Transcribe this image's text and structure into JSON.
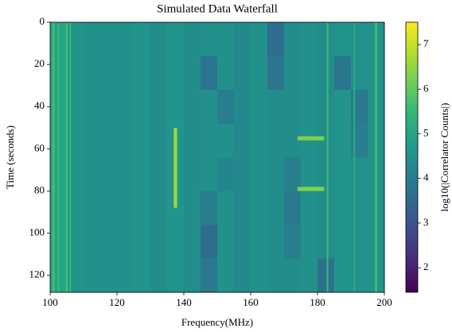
{
  "chart_data": {
    "type": "heatmap",
    "title": "Simulated Data Waterfall",
    "xlabel": "Frequency(MHz)",
    "ylabel": "Time (seconds)",
    "colorbar_label": "log10(|Correlator Counts|)",
    "colormap": "viridis",
    "xlim": [
      100,
      200
    ],
    "ylim": [
      128,
      0
    ],
    "xticks": [
      100,
      120,
      140,
      160,
      180,
      200
    ],
    "yticks": [
      0,
      20,
      40,
      60,
      80,
      100,
      120
    ],
    "clim": [
      1.45,
      7.5
    ],
    "cticks": [
      2,
      3,
      4,
      5,
      6,
      7
    ],
    "x_edges": [
      100,
      105,
      110,
      115,
      120,
      125,
      130,
      135,
      140,
      145,
      150,
      155,
      160,
      165,
      170,
      175,
      180,
      185,
      190,
      195,
      200
    ],
    "y_edges": [
      0,
      16,
      32,
      48,
      64,
      80,
      96,
      112,
      128
    ],
    "values": [
      [
        5.0,
        4.6,
        4.5,
        4.5,
        4.5,
        4.6,
        4.4,
        4.6,
        4.4,
        4.5,
        4.5,
        4.3,
        4.5,
        3.6,
        4.4,
        4.5,
        4.4,
        4.6,
        4.5,
        4.6
      ],
      [
        5.0,
        4.6,
        4.5,
        4.5,
        4.5,
        4.6,
        4.4,
        4.6,
        4.4,
        3.8,
        4.5,
        4.3,
        4.5,
        3.8,
        4.4,
        4.5,
        4.4,
        3.8,
        4.5,
        4.6
      ],
      [
        5.0,
        4.6,
        4.5,
        4.5,
        4.5,
        4.6,
        4.4,
        4.6,
        4.4,
        4.5,
        4.0,
        4.3,
        4.5,
        4.4,
        4.4,
        4.5,
        4.4,
        4.6,
        3.9,
        4.6
      ],
      [
        5.0,
        4.6,
        4.5,
        4.5,
        4.5,
        4.6,
        4.4,
        4.6,
        4.4,
        4.5,
        4.5,
        4.3,
        4.5,
        4.4,
        4.4,
        4.5,
        4.4,
        4.6,
        4.0,
        4.6
      ],
      [
        5.0,
        4.6,
        4.5,
        4.5,
        4.5,
        4.6,
        4.4,
        4.6,
        4.4,
        4.5,
        4.2,
        4.3,
        4.5,
        4.4,
        4.1,
        4.5,
        4.4,
        4.6,
        4.5,
        4.6
      ],
      [
        5.0,
        4.6,
        4.5,
        4.5,
        4.5,
        4.6,
        4.4,
        4.6,
        4.4,
        4.0,
        4.5,
        4.3,
        4.5,
        4.4,
        3.9,
        4.5,
        4.4,
        4.6,
        4.5,
        4.6
      ],
      [
        5.0,
        4.6,
        4.5,
        4.5,
        4.5,
        4.6,
        4.4,
        4.6,
        4.4,
        3.6,
        4.5,
        4.3,
        4.5,
        4.4,
        4.0,
        4.5,
        4.4,
        4.6,
        4.5,
        4.6
      ],
      [
        5.0,
        4.6,
        4.5,
        4.5,
        4.5,
        4.6,
        4.4,
        4.6,
        4.4,
        3.9,
        4.5,
        4.3,
        4.5,
        4.4,
        4.4,
        4.5,
        3.7,
        4.6,
        4.5,
        4.6
      ]
    ],
    "rfi_channels": [
      {
        "freq": 101,
        "value": 5.8
      },
      {
        "freq": 102.5,
        "value": 5.5
      },
      {
        "freq": 105,
        "value": 5.8
      },
      {
        "freq": 106,
        "value": 5.5
      },
      {
        "freq": 183,
        "value": 5.6
      },
      {
        "freq": 191,
        "value": 5.2
      },
      {
        "freq": 197.5,
        "value": 5.9
      }
    ],
    "bursts": [
      {
        "f0": 137,
        "f1": 138,
        "t0": 50,
        "t1": 88,
        "value": 6.6
      },
      {
        "f0": 174,
        "f1": 182,
        "t0": 54,
        "t1": 56,
        "value": 6.3
      },
      {
        "f0": 174,
        "f1": 182,
        "t0": 78,
        "t1": 80,
        "value": 6.3
      }
    ]
  }
}
